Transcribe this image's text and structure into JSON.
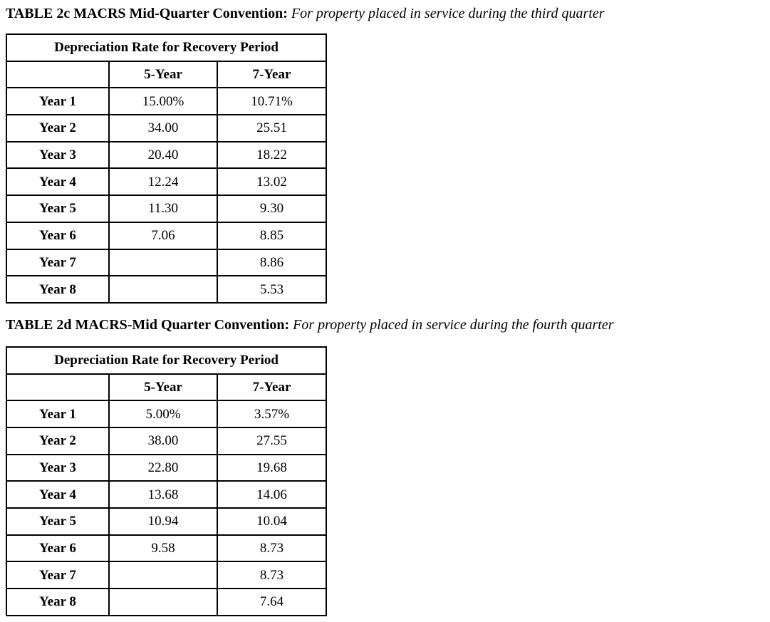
{
  "document": {
    "colors": {
      "text": "#000000",
      "background": "#ffffff",
      "border": "#000000"
    },
    "tables": [
      {
        "id": "2c",
        "title_bold": "TABLE 2c MACRS Mid-Quarter Convention:",
        "title_italic": "For property placed in service during the third quarter",
        "header": "Depreciation Rate for Recovery Period",
        "col_headers": {
          "label": "",
          "five": "5-Year",
          "seven": "7-Year"
        },
        "rows": [
          {
            "label": "Year 1",
            "five": "15.00%",
            "seven": "10.71%"
          },
          {
            "label": "Year 2",
            "five": "34.00",
            "seven": "25.51"
          },
          {
            "label": "Year 3",
            "five": "20.40",
            "seven": "18.22"
          },
          {
            "label": "Year 4",
            "five": "12.24",
            "seven": "13.02"
          },
          {
            "label": "Year 5",
            "five": "11.30",
            "seven": "9.30"
          },
          {
            "label": "Year 6",
            "five": "7.06",
            "seven": "8.85"
          },
          {
            "label": "Year 7",
            "five": "",
            "seven": "8.86"
          },
          {
            "label": "Year 8",
            "five": "",
            "seven": "5.53"
          }
        ]
      },
      {
        "id": "2d",
        "title_bold": "TABLE 2d MACRS-Mid Quarter Convention:",
        "title_italic": "For property placed in service during the fourth quarter",
        "header": "Depreciation Rate for Recovery Period",
        "col_headers": {
          "label": "",
          "five": "5-Year",
          "seven": "7-Year"
        },
        "rows": [
          {
            "label": "Year 1",
            "five": "5.00%",
            "seven": "3.57%"
          },
          {
            "label": "Year 2",
            "five": "38.00",
            "seven": "27.55"
          },
          {
            "label": "Year 3",
            "five": "22.80",
            "seven": "19.68"
          },
          {
            "label": "Year 4",
            "five": "13.68",
            "seven": "14.06"
          },
          {
            "label": "Year 5",
            "five": "10.94",
            "seven": "10.04"
          },
          {
            "label": "Year 6",
            "five": "9.58",
            "seven": "8.73"
          },
          {
            "label": "Year 7",
            "five": "",
            "seven": "8.73"
          },
          {
            "label": "Year 8",
            "five": "",
            "seven": "7.64"
          }
        ]
      }
    ]
  }
}
